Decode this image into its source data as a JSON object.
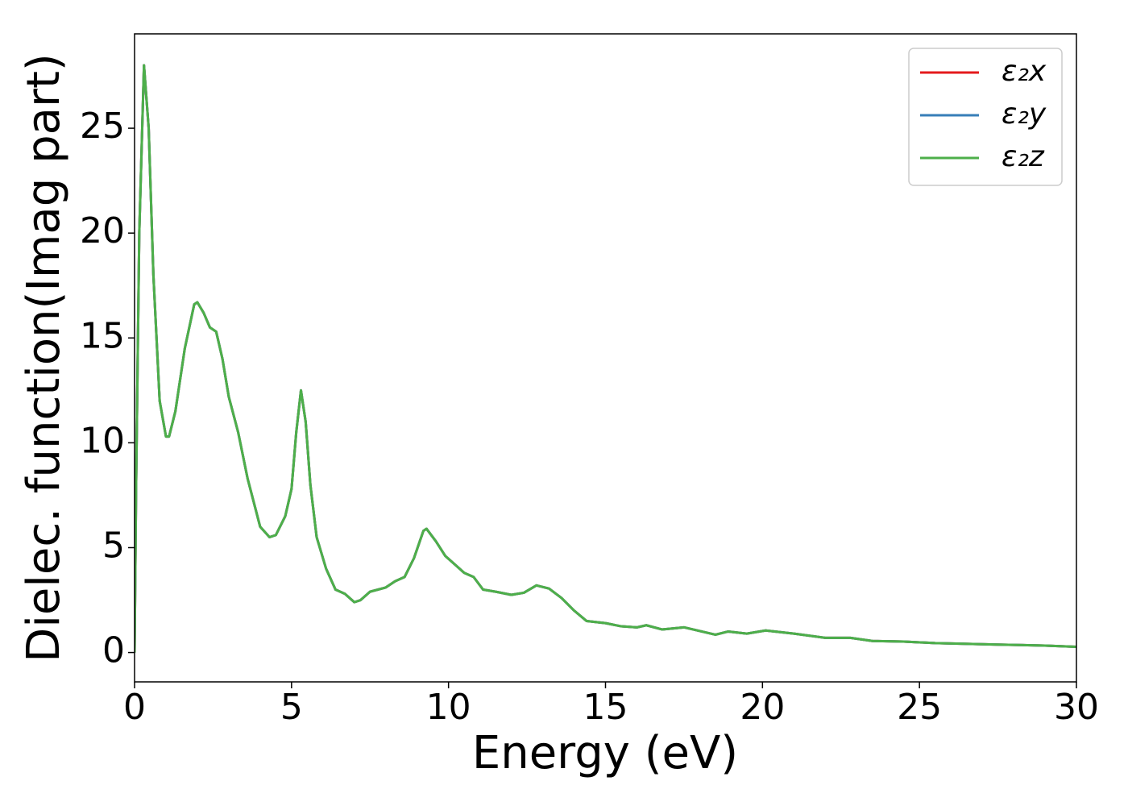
{
  "chart_data": {
    "type": "line",
    "xlabel": "Energy (eV)",
    "ylabel": "Dielec. function(Imag part)",
    "x": [
      0,
      0.05,
      0.15,
      0.3,
      0.45,
      0.6,
      0.8,
      1.0,
      1.1,
      1.3,
      1.6,
      1.9,
      2.0,
      2.2,
      2.4,
      2.6,
      2.8,
      3.0,
      3.3,
      3.6,
      4.0,
      4.3,
      4.5,
      4.8,
      5.0,
      5.15,
      5.3,
      5.45,
      5.6,
      5.8,
      6.1,
      6.4,
      6.7,
      7.0,
      7.2,
      7.5,
      8.0,
      8.3,
      8.6,
      8.9,
      9.2,
      9.3,
      9.6,
      9.9,
      10.2,
      10.5,
      10.8,
      11.1,
      11.5,
      12.0,
      12.4,
      12.8,
      13.2,
      13.6,
      14.0,
      14.4,
      15.0,
      15.5,
      16.0,
      16.3,
      16.8,
      17.5,
      18.5,
      18.9,
      19.5,
      20.1,
      21.0,
      22.0,
      22.8,
      23.5,
      24.5,
      25.5,
      27.5,
      29,
      30
    ],
    "series": [
      {
        "name": "ε₂x",
        "color": "#e41a1c",
        "values": [
          0,
          8,
          20,
          28,
          25,
          18,
          12,
          10.3,
          10.3,
          11.5,
          14.5,
          16.6,
          16.7,
          16.2,
          15.5,
          15.3,
          14,
          12.2,
          10.5,
          8.3,
          6,
          5.5,
          5.6,
          6.5,
          7.8,
          10.5,
          12.5,
          11,
          8,
          5.5,
          4,
          3,
          2.8,
          2.4,
          2.5,
          2.9,
          3.1,
          3.4,
          3.6,
          4.5,
          5.8,
          5.9,
          5.3,
          4.6,
          4.2,
          3.8,
          3.6,
          3.0,
          2.9,
          2.75,
          2.85,
          3.2,
          3.05,
          2.6,
          2.0,
          1.5,
          1.4,
          1.25,
          1.2,
          1.3,
          1.1,
          1.2,
          0.85,
          1.0,
          0.9,
          1.05,
          0.9,
          0.7,
          0.7,
          0.55,
          0.52,
          0.45,
          0.38,
          0.33,
          0.27
        ]
      },
      {
        "name": "ε₂y",
        "color": "#377eb8",
        "values": [
          0,
          8,
          20,
          28,
          25,
          18,
          12,
          10.3,
          10.3,
          11.5,
          14.5,
          16.6,
          16.7,
          16.2,
          15.5,
          15.3,
          14,
          12.2,
          10.5,
          8.3,
          6,
          5.5,
          5.6,
          6.5,
          7.8,
          10.5,
          12.5,
          11,
          8,
          5.5,
          4,
          3,
          2.8,
          2.4,
          2.5,
          2.9,
          3.1,
          3.4,
          3.6,
          4.5,
          5.8,
          5.9,
          5.3,
          4.6,
          4.2,
          3.8,
          3.6,
          3.0,
          2.9,
          2.75,
          2.85,
          3.2,
          3.05,
          2.6,
          2.0,
          1.5,
          1.4,
          1.25,
          1.2,
          1.3,
          1.1,
          1.2,
          0.85,
          1.0,
          0.9,
          1.05,
          0.9,
          0.7,
          0.7,
          0.55,
          0.52,
          0.45,
          0.38,
          0.33,
          0.27
        ]
      },
      {
        "name": "ε₂z",
        "color": "#4daf4a",
        "values": [
          0,
          8,
          20,
          28,
          25,
          18,
          12,
          10.3,
          10.3,
          11.5,
          14.5,
          16.6,
          16.7,
          16.2,
          15.5,
          15.3,
          14,
          12.2,
          10.5,
          8.3,
          6,
          5.5,
          5.6,
          6.5,
          7.8,
          10.5,
          12.5,
          11,
          8,
          5.5,
          4,
          3,
          2.8,
          2.4,
          2.5,
          2.9,
          3.1,
          3.4,
          3.6,
          4.5,
          5.8,
          5.9,
          5.3,
          4.6,
          4.2,
          3.8,
          3.6,
          3.0,
          2.9,
          2.75,
          2.85,
          3.2,
          3.05,
          2.6,
          2.0,
          1.5,
          1.4,
          1.25,
          1.2,
          1.3,
          1.1,
          1.2,
          0.85,
          1.0,
          0.9,
          1.05,
          0.9,
          0.7,
          0.7,
          0.55,
          0.52,
          0.45,
          0.38,
          0.33,
          0.27
        ]
      }
    ],
    "xlim": [
      0,
      30
    ],
    "xticks": [
      0,
      5,
      10,
      15,
      20,
      25,
      30
    ],
    "ylim": [
      -1.4,
      29.5
    ],
    "yticks": [
      0,
      5,
      10,
      15,
      20,
      25
    ],
    "legend": "upper right"
  }
}
